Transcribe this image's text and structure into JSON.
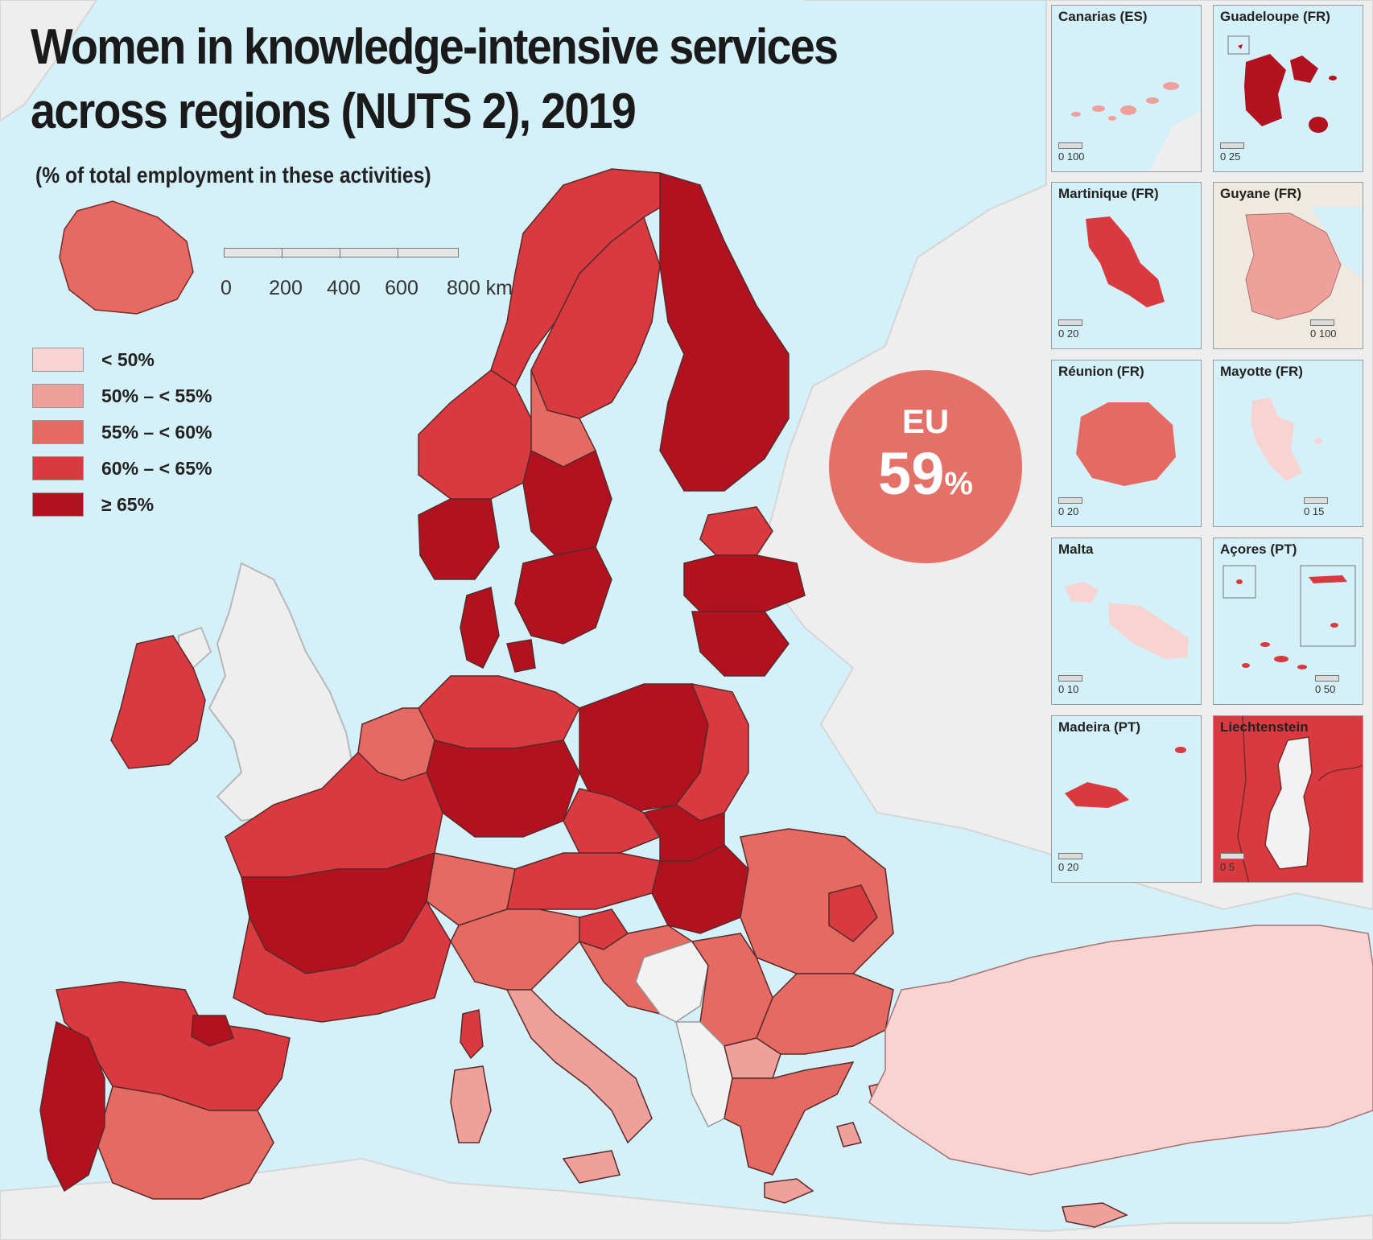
{
  "title_line1": "Women in knowledge-intensive services",
  "title_line2": "across regions (NUTS 2), 2019",
  "subtitle": "(% of total employment in these activities)",
  "scalebar": {
    "labels": [
      "0",
      "200",
      "400",
      "600",
      "800 km"
    ]
  },
  "legend": [
    {
      "label": "< 50%",
      "color": "#f7d4d2"
    },
    {
      "label": "50% – < 55%",
      "color": "#f0a09a"
    },
    {
      "label": "55% – < 60%",
      "color": "#e46a62"
    },
    {
      "label": "60% – < 65%",
      "color": "#d93a40"
    },
    {
      "label": "≥ 65%",
      "color": "#b2111f"
    }
  ],
  "colors": {
    "sea": "#d4f0f8",
    "non_eu_land": "#eeeeee",
    "no_data": "#f2f2f2",
    "border": "#5a2a2a"
  },
  "eu_badge": {
    "label": "EU",
    "value": "59",
    "unit": "%"
  },
  "insets": [
    {
      "name": "Canarias (ES)",
      "scale_label": "0  100",
      "color": "#f0a09a",
      "slug": "canarias"
    },
    {
      "name": "Guadeloupe (FR)",
      "scale_label": "0    25",
      "color": "#b2111f",
      "slug": "guadeloupe"
    },
    {
      "name": "Martinique (FR)",
      "scale_label": "0    20",
      "color": "#d93a40",
      "slug": "martinique"
    },
    {
      "name": "Guyane (FR)",
      "scale_label": "0   100",
      "color": "#f0a09a",
      "slug": "guyane"
    },
    {
      "name": "Réunion (FR)",
      "scale_label": "0    20",
      "color": "#e46a62",
      "slug": "reunion"
    },
    {
      "name": "Mayotte (FR)",
      "scale_label": "0    15",
      "color": "#f7d4d2",
      "slug": "mayotte"
    },
    {
      "name": "Malta",
      "scale_label": "0    10",
      "color": "#f7d4d2",
      "slug": "malta"
    },
    {
      "name": "Açores (PT)",
      "scale_label": "0    50",
      "color": "#d93a40",
      "slug": "acores"
    },
    {
      "name": "Madeira (PT)",
      "scale_label": "0    20",
      "color": "#d93a40",
      "slug": "madeira"
    },
    {
      "name": "Liechtenstein",
      "scale_label": "0    5",
      "color": "#d93a40",
      "slug": "liechtenstein"
    }
  ],
  "region_classes": {
    "iceland": 2,
    "norway_west": 3,
    "norway_southwest": 4,
    "norway_north": 3,
    "sweden_north": 3,
    "sweden_mid_west": 2,
    "sweden_central": 4,
    "sweden_south": 4,
    "finland": 4,
    "estonia": 3,
    "latvia": 4,
    "lithuania": 4,
    "denmark": 4,
    "ireland": 3,
    "uk": "no_data",
    "benelux": 2,
    "germany_north": 3,
    "germany_central": 4,
    "poland": 4,
    "poland_east": 3,
    "czechia": 3,
    "france_north": 3,
    "france_central": 4,
    "france_south": 3,
    "iberia_north": 3,
    "iberia_central": 2,
    "portugal": 4,
    "basque": 4,
    "switzerland": 2,
    "austria": 3,
    "hungary": 4,
    "slovakia": 4,
    "romania": 2,
    "romania_centre": 3,
    "italy_north": 2,
    "italy_south": 1,
    "sardinia": 1,
    "corsica": 3,
    "croatia": 2,
    "slovenia": 3,
    "bosnia": "no_data",
    "serbia": 2,
    "montenegro_albania": "no_data",
    "bulgaria": 2,
    "greece": 2,
    "greece_islands": 1,
    "turkey": 0,
    "cyprus": 1,
    "macedonia": 1
  }
}
